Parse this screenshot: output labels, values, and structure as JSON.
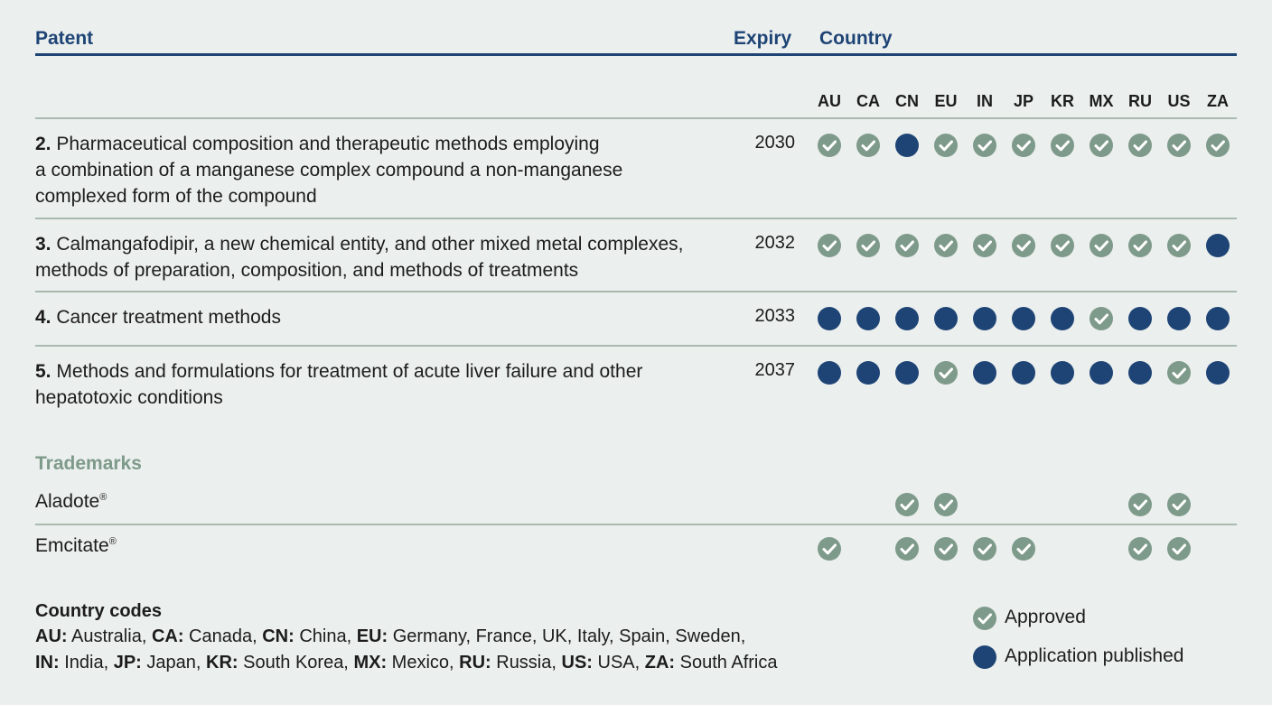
{
  "header": {
    "patent": "Patent",
    "expiry": "Expiry",
    "country": "Country"
  },
  "countries": [
    "AU",
    "CA",
    "CN",
    "EU",
    "IN",
    "JP",
    "KR",
    "MX",
    "RU",
    "US",
    "ZA"
  ],
  "patents": [
    {
      "num": "2.",
      "lines": [
        "Pharmaceutical composition and therapeutic methods employing",
        "a combination of a manganese complex compound a non-manganese",
        "complexed form of the compound"
      ],
      "expiry": "2030",
      "status": [
        "approved",
        "approved",
        "published",
        "approved",
        "approved",
        "approved",
        "approved",
        "approved",
        "approved",
        "approved",
        "approved"
      ]
    },
    {
      "num": "3.",
      "lines": [
        "Calmangafodipir, a new chemical entity, and other mixed metal complexes,",
        "methods of preparation, composition, and methods of treatments"
      ],
      "expiry": "2032",
      "status": [
        "approved",
        "approved",
        "approved",
        "approved",
        "approved",
        "approved",
        "approved",
        "approved",
        "approved",
        "approved",
        "published"
      ]
    },
    {
      "num": "4.",
      "lines": [
        "Cancer treatment methods"
      ],
      "expiry": "2033",
      "status": [
        "published",
        "published",
        "published",
        "published",
        "published",
        "published",
        "published",
        "approved",
        "published",
        "published",
        "published"
      ]
    },
    {
      "num": "5.",
      "lines": [
        "Methods and formulations for treatment of acute liver failure and other",
        "hepatotoxic conditions"
      ],
      "expiry": "2037",
      "status": [
        "published",
        "published",
        "published",
        "approved",
        "published",
        "published",
        "published",
        "published",
        "published",
        "approved",
        "published"
      ]
    }
  ],
  "trademarks": {
    "heading": "Trademarks",
    "items": [
      {
        "name": "Aladote",
        "mark": "®",
        "status": [
          "",
          "",
          "approved",
          "approved",
          "",
          "",
          "",
          "",
          "approved",
          "approved",
          ""
        ]
      },
      {
        "name": "Emcitate",
        "mark": "®",
        "status": [
          "approved",
          "",
          "approved",
          "approved",
          "approved",
          "approved",
          "",
          "",
          "approved",
          "approved",
          ""
        ]
      }
    ]
  },
  "country_codes": {
    "title": "Country codes",
    "line1": [
      {
        "code": "AU:",
        "name": " Australia, "
      },
      {
        "code": "CA:",
        "name": " Canada, "
      },
      {
        "code": "CN:",
        "name": " China, "
      },
      {
        "code": "EU:",
        "name": " Germany, France, UK, Italy, Spain, Sweden,"
      }
    ],
    "line2": [
      {
        "code": "IN:",
        "name": " India, "
      },
      {
        "code": "JP:",
        "name": " Japan, "
      },
      {
        "code": "KR:",
        "name": " South Korea, "
      },
      {
        "code": "MX:",
        "name": " Mexico, "
      },
      {
        "code": "RU:",
        "name": " Russia, "
      },
      {
        "code": "US:",
        "name": " USA, "
      },
      {
        "code": "ZA:",
        "name": " South Africa"
      }
    ]
  },
  "legend": {
    "approved": "Approved",
    "published": "Application published"
  },
  "colors": {
    "navy": "#1e4475",
    "sage": "#7e9a8a",
    "background": "#ebefee"
  },
  "icons": {
    "approved": "check-circle-icon",
    "published": "filled-circle-icon"
  }
}
